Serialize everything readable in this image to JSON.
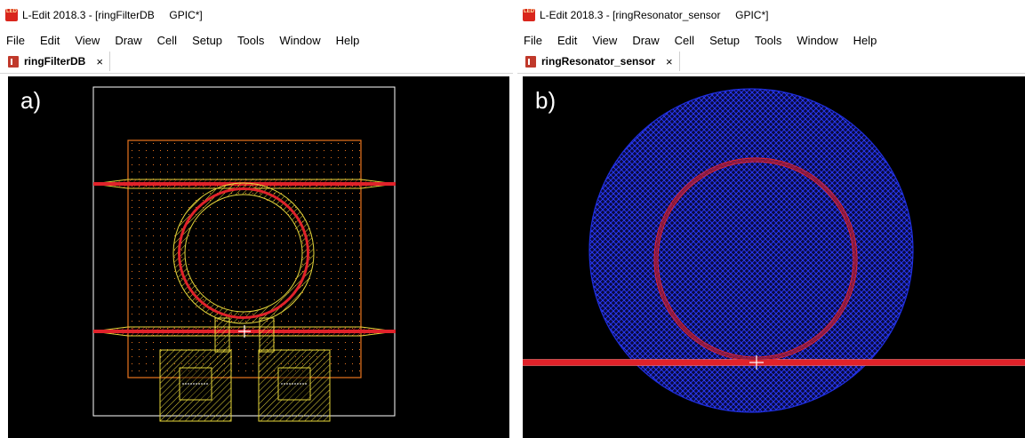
{
  "windows": [
    {
      "title": "L-Edit 2018.3 - [ringFilterDB     GPIC*]",
      "menu": [
        "File",
        "Edit",
        "View",
        "Draw",
        "Cell",
        "Setup",
        "Tools",
        "Window",
        "Help"
      ],
      "tab": {
        "label": "ringFilterDB",
        "close": "×"
      },
      "panel_label": "a)"
    },
    {
      "title": "L-Edit 2018.3 - [ringResonator_sensor     GPIC*]",
      "menu": [
        "File",
        "Edit",
        "View",
        "Draw",
        "Cell",
        "Setup",
        "Tools",
        "Window",
        "Help"
      ],
      "tab": {
        "label": "ringResonator_sensor",
        "close": "×"
      },
      "panel_label": "b)"
    }
  ],
  "app_icon_text": "LED",
  "colors": {
    "canvas_bg": "#000000",
    "waveguide_red": "#e0222a",
    "ring_yellow": "#e6d63a",
    "orange_layer": "#e8741e",
    "cell_boundary": "#ffffff",
    "cladding_blue": "#1f2fe0"
  },
  "icons": [
    "app-logo-icon",
    "cell-tab-icon",
    "close-icon",
    "origin-crosshair-icon"
  ]
}
